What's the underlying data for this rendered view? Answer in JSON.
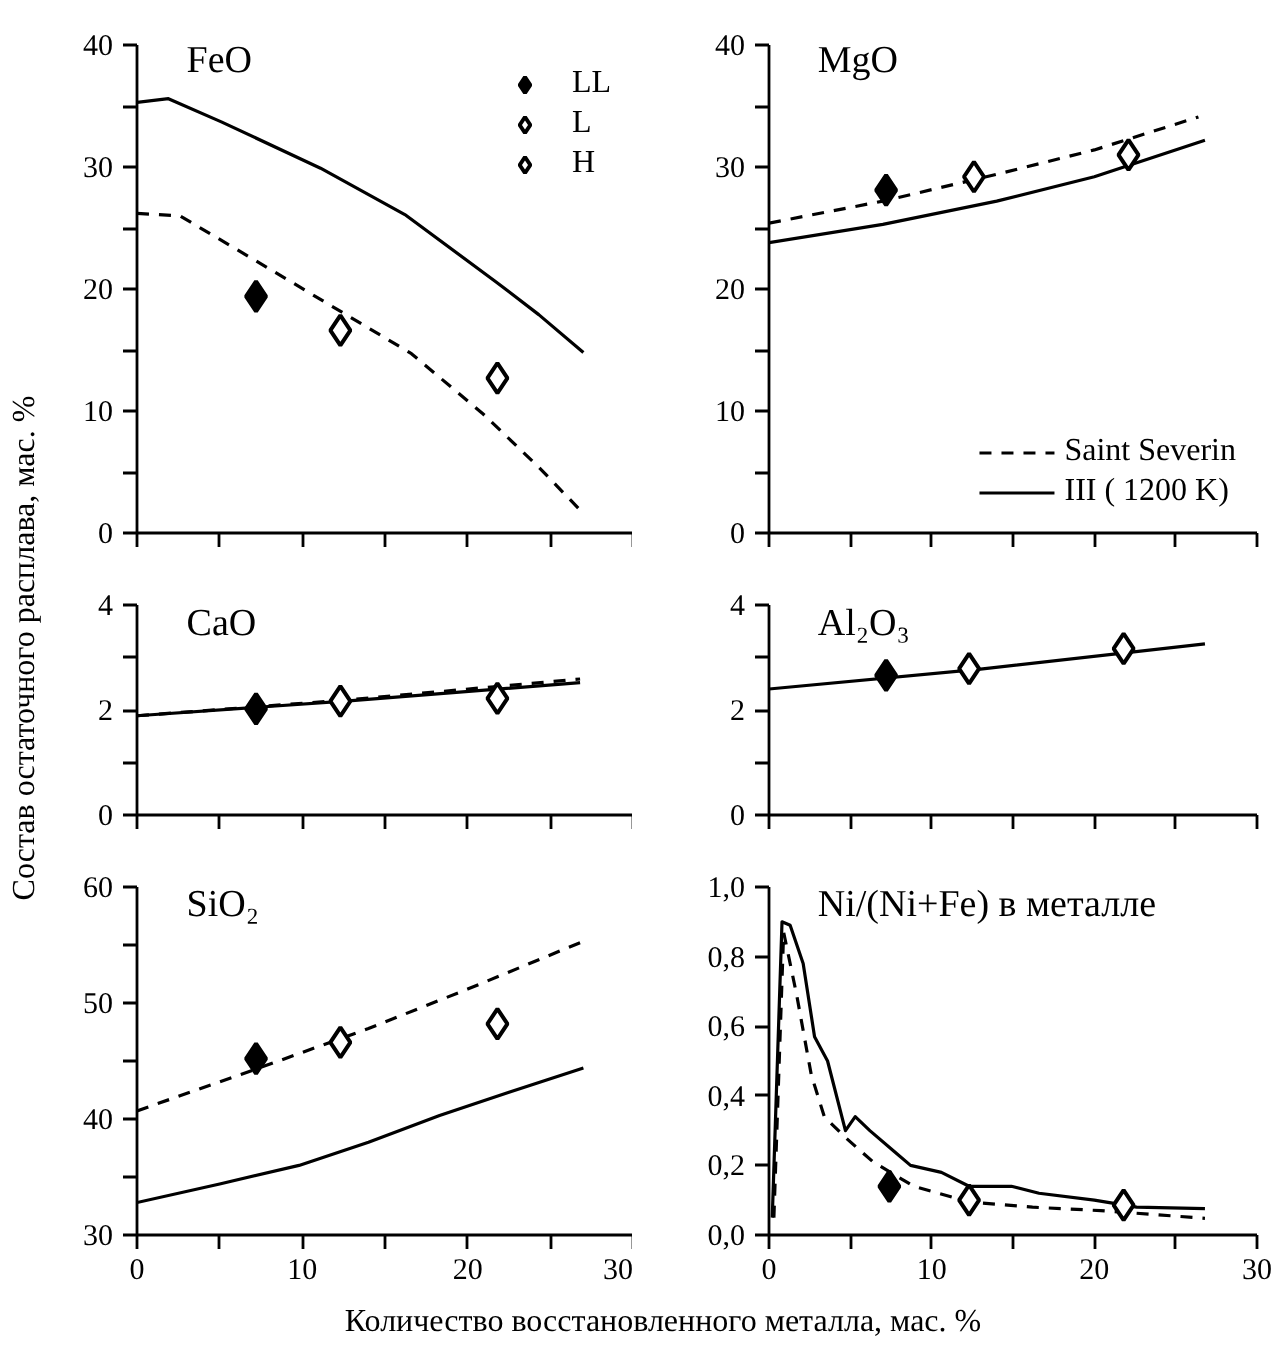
{
  "chart_data": [
    {
      "type": "line",
      "title": "FeO",
      "xlim": [
        0,
        30
      ],
      "ylim": [
        0,
        40
      ],
      "xticks": [
        0,
        {
          "value": 5,
          "label": null
        },
        10,
        {
          "value": 15,
          "label": null
        },
        20,
        {
          "value": 25,
          "label": null
        },
        30
      ],
      "yticks": [
        0,
        {
          "value": 5,
          "label": null
        },
        10,
        {
          "value": 15,
          "label": null
        },
        20,
        {
          "value": 25,
          "label": null
        },
        30,
        {
          "value": 35,
          "label": null
        },
        40
      ],
      "tick_labels": "y",
      "legend": "top right",
      "series": [
        {
          "line_style": "dashed",
          "color": "#000000",
          "x": [
            0,
            2.6,
            7.2,
            11.9,
            16.6,
            20.9,
            24.3,
            27
          ],
          "values": [
            26.2,
            26.0,
            22.3,
            18.5,
            14.7,
            9.8,
            5.4,
            1.6
          ]
        },
        {
          "line_style": "solid",
          "color": "#000000",
          "x": [
            0,
            1.9,
            5.1,
            11.1,
            16.2,
            21.7,
            24.3,
            27
          ],
          "values": [
            35.3,
            35.6,
            33.7,
            29.9,
            26.1,
            20.6,
            17.9,
            14.8
          ]
        },
        {
          "type": "scatter",
          "marker": "diamond",
          "name": "LL",
          "color": "#000000",
          "x": [
            7.2
          ],
          "values": [
            19.4
          ]
        },
        {
          "type": "scatter",
          "marker": "diamond",
          "name": "L",
          "color": "#ffffff",
          "x": [
            12.3
          ],
          "values": [
            16.6
          ]
        },
        {
          "type": "scatter",
          "marker": "diamond",
          "name": "H",
          "color": "#ffffff",
          "x": [
            21.8
          ],
          "values": [
            12.7
          ]
        }
      ]
    },
    {
      "type": "line",
      "title": "MgO",
      "xlim": [
        0,
        30
      ],
      "ylim": [
        0,
        40
      ],
      "xticks": [
        0,
        {
          "value": 5,
          "label": null
        },
        10,
        {
          "value": 15,
          "label": null
        },
        20,
        {
          "value": 25,
          "label": null
        },
        30
      ],
      "yticks": [
        0,
        {
          "value": 5,
          "label": null
        },
        10,
        {
          "value": 15,
          "label": null
        },
        20,
        {
          "value": 25,
          "label": null
        },
        30,
        {
          "value": 35,
          "label": null
        },
        40
      ],
      "tick_labels": "y",
      "legend": "bottom right",
      "series": [
        {
          "name": "Saint Severin",
          "line_style": "dashed",
          "color": "#000000",
          "x": [
            0,
            7,
            14,
            20,
            26.4
          ],
          "values": [
            25.4,
            27.2,
            29.4,
            31.4,
            34.1
          ]
        },
        {
          "name": "III ( 1200 K)",
          "line_style": "solid",
          "color": "#000000",
          "x": [
            0,
            7,
            14,
            20,
            26.8
          ],
          "values": [
            23.8,
            25.3,
            27.2,
            29.2,
            32.2
          ]
        },
        {
          "type": "scatter",
          "marker": "diamond",
          "color": "#000000",
          "x": [
            7.2
          ],
          "values": [
            28.1
          ]
        },
        {
          "type": "scatter",
          "marker": "diamond",
          "color": "#ffffff",
          "x": [
            12.6
          ],
          "values": [
            29.2
          ]
        },
        {
          "type": "scatter",
          "marker": "diamond",
          "color": "#ffffff",
          "x": [
            22.1
          ],
          "values": [
            31.0
          ]
        }
      ]
    },
    {
      "type": "line",
      "title": "CaO",
      "ylabel": "Состав остаточного расплава, мас. %",
      "xlim": [
        0,
        30
      ],
      "ylim": [
        0,
        4
      ],
      "xticks": [
        0,
        {
          "value": 5,
          "label": null
        },
        10,
        {
          "value": 15,
          "label": null
        },
        20,
        {
          "value": 25,
          "label": null
        },
        30
      ],
      "yticks": [
        0,
        {
          "value": 1,
          "label": null
        },
        2,
        {
          "value": 3,
          "label": null
        },
        4
      ],
      "tick_labels": "y",
      "series": [
        {
          "line_style": "dashed",
          "color": "#000000",
          "x": [
            0,
            13,
            26.8
          ],
          "values": [
            1.89,
            2.2,
            2.59
          ]
        },
        {
          "line_style": "solid",
          "color": "#000000",
          "x": [
            0,
            13,
            26.8
          ],
          "values": [
            1.89,
            2.18,
            2.52
          ]
        },
        {
          "type": "scatter",
          "marker": "diamond",
          "color": "#000000",
          "x": [
            7.2
          ],
          "values": [
            2.02
          ]
        },
        {
          "type": "scatter",
          "marker": "diamond",
          "color": "#ffffff",
          "x": [
            12.3
          ],
          "values": [
            2.17
          ]
        },
        {
          "type": "scatter",
          "marker": "diamond",
          "color": "#ffffff",
          "x": [
            21.8
          ],
          "values": [
            2.22
          ]
        }
      ]
    },
    {
      "type": "line",
      "title": "Al₂O₃",
      "xlim": [
        0,
        30
      ],
      "ylim": [
        0,
        4
      ],
      "xticks": [
        0,
        {
          "value": 5,
          "label": null
        },
        10,
        {
          "value": 15,
          "label": null
        },
        20,
        {
          "value": 25,
          "label": null
        },
        30
      ],
      "yticks": [
        0,
        {
          "value": 1,
          "label": null
        },
        2,
        {
          "value": 3,
          "label": null
        },
        4
      ],
      "tick_labels": "y",
      "series": [
        {
          "line_style": "solid",
          "color": "#000000",
          "x": [
            0,
            13,
            26.8
          ],
          "values": [
            2.4,
            2.78,
            3.26
          ]
        },
        {
          "type": "scatter",
          "marker": "diamond",
          "color": "#000000",
          "x": [
            7.2
          ],
          "values": [
            2.66
          ]
        },
        {
          "type": "scatter",
          "marker": "diamond",
          "color": "#ffffff",
          "x": [
            12.3
          ],
          "values": [
            2.79
          ]
        },
        {
          "type": "scatter",
          "marker": "diamond",
          "color": "#ffffff",
          "x": [
            21.8
          ],
          "values": [
            3.17
          ]
        }
      ]
    },
    {
      "type": "line",
      "title": "SiO₂",
      "xlabel": "Количество восстановленного металла, мас. %",
      "xlim": [
        0,
        30
      ],
      "ylim": [
        30,
        60
      ],
      "xticks": [
        0,
        {
          "value": 5,
          "label": null
        },
        10,
        {
          "value": 15,
          "label": null
        },
        20,
        {
          "value": 25,
          "label": null
        },
        30
      ],
      "yticks": [
        30,
        {
          "value": 35,
          "label": null
        },
        40,
        {
          "value": 45,
          "label": null
        },
        50,
        {
          "value": 55,
          "label": null
        },
        60
      ],
      "series": [
        {
          "line_style": "dashed",
          "color": "#000000",
          "x": [
            0,
            7,
            14,
            20,
            26.8
          ],
          "values": [
            40.7,
            44.2,
            47.8,
            51.2,
            55.2
          ]
        },
        {
          "line_style": "solid",
          "color": "#000000",
          "x": [
            0,
            5,
            9.8,
            14,
            18.3,
            22.5,
            27
          ],
          "values": [
            32.8,
            34.4,
            36.0,
            38.0,
            40.3,
            42.3,
            44.4
          ]
        },
        {
          "type": "scatter",
          "marker": "diamond",
          "color": "#000000",
          "x": [
            7.2
          ],
          "values": [
            45.2
          ]
        },
        {
          "type": "scatter",
          "marker": "diamond",
          "color": "#ffffff",
          "x": [
            12.3
          ],
          "values": [
            46.6
          ]
        },
        {
          "type": "scatter",
          "marker": "diamond",
          "color": "#ffffff",
          "x": [
            21.8
          ],
          "values": [
            48.2
          ]
        }
      ]
    },
    {
      "type": "line",
      "title": "Ni/(Ni+Fe) в металле",
      "xlim": [
        0,
        30
      ],
      "ylim": [
        0,
        1
      ],
      "xticks": [
        0,
        {
          "value": 5,
          "label": null
        },
        10,
        {
          "value": 15,
          "label": null
        },
        20,
        {
          "value": 25,
          "label": null
        },
        30
      ],
      "yticks": [
        {
          "value": 0,
          "label": "0,0"
        },
        {
          "value": 0.2,
          "label": "0,2"
        },
        {
          "value": 0.4,
          "label": "0,4"
        },
        {
          "value": 0.6,
          "label": "0,6"
        },
        {
          "value": 0.8,
          "label": "0,8"
        },
        {
          "value": 1,
          "label": "1,0"
        }
      ],
      "series": [
        {
          "line_style": "dashed",
          "color": "#000000",
          "x": [
            0.3,
            0.9,
            1.7,
            2.6,
            3.4,
            4.7,
            6.4,
            8.9,
            12.3,
            16.2,
            20.4,
            26.8
          ],
          "values": [
            0.05,
            0.87,
            0.69,
            0.46,
            0.34,
            0.28,
            0.21,
            0.14,
            0.095,
            0.08,
            0.07,
            0.048
          ]
        },
        {
          "line_style": "solid",
          "color": "#000000",
          "x": [
            0.2,
            0.8,
            1.3,
            2.1,
            2.8,
            3.6,
            4.7,
            5.3,
            6.2,
            7.7,
            8.7,
            10.6,
            12.3,
            14.9,
            16.6,
            20,
            22.6,
            26.8
          ],
          "values": [
            0.05,
            0.9,
            0.89,
            0.78,
            0.57,
            0.5,
            0.3,
            0.34,
            0.3,
            0.24,
            0.2,
            0.18,
            0.14,
            0.14,
            0.12,
            0.1,
            0.08,
            0.076
          ]
        },
        {
          "type": "scatter",
          "marker": "diamond",
          "color": "#000000",
          "x": [
            7.4
          ],
          "values": [
            0.14
          ]
        },
        {
          "type": "scatter",
          "marker": "diamond",
          "color": "#ffffff",
          "x": [
            12.3
          ],
          "values": [
            0.1
          ]
        },
        {
          "type": "scatter",
          "marker": "diamond",
          "color": "#ffffff",
          "x": [
            21.8
          ],
          "values": [
            0.086
          ]
        }
      ]
    }
  ]
}
